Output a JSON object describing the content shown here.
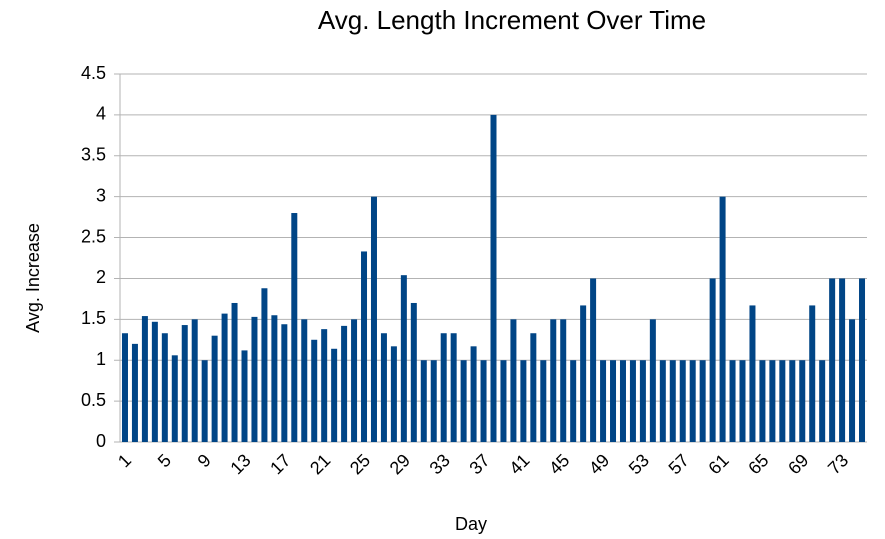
{
  "chart_data": {
    "type": "bar",
    "title": "Avg. Length Increment Over Time",
    "x_label": "Day",
    "y_label": "Avg. Increase",
    "categories": [
      "1",
      null,
      null,
      null,
      "5",
      null,
      null,
      null,
      "9",
      null,
      null,
      null,
      "13",
      null,
      null,
      null,
      "17",
      null,
      null,
      null,
      "21",
      null,
      null,
      null,
      "25",
      null,
      null,
      null,
      "29",
      null,
      null,
      null,
      "33",
      null,
      null,
      null,
      "37",
      null,
      null,
      null,
      "41",
      null,
      null,
      null,
      "45",
      null,
      null,
      null,
      "49",
      null,
      null,
      null,
      "53",
      null,
      null,
      null,
      "57",
      null,
      null,
      null,
      "61",
      null,
      null,
      null,
      "65",
      null,
      null,
      null,
      "69",
      null,
      null,
      null,
      "73",
      null,
      null
    ],
    "values": [
      1.33,
      1.2,
      1.54,
      1.47,
      1.33,
      1.06,
      1.43,
      1.5,
      1.0,
      1.3,
      1.57,
      1.7,
      1.12,
      1.53,
      1.88,
      1.55,
      1.44,
      2.8,
      1.5,
      1.25,
      1.38,
      1.14,
      1.42,
      1.5,
      2.33,
      3.0,
      1.33,
      1.17,
      2.04,
      1.7,
      1.0,
      1.0,
      1.33,
      1.33,
      1.0,
      1.17,
      1.0,
      4.0,
      1.0,
      1.5,
      1.0,
      1.33,
      1.0,
      1.5,
      1.5,
      1.0,
      1.67,
      2.0,
      1.0,
      1.0,
      1.0,
      1.0,
      1.0,
      1.5,
      1.0,
      1.0,
      1.0,
      1.0,
      1.0,
      2.0,
      3.0,
      1.0,
      1.0,
      1.67,
      1.0,
      1.0,
      1.0,
      1.0,
      1.0,
      1.67,
      1.0,
      2.0,
      2.0,
      1.5,
      2.0
    ],
    "color": "#004586",
    "ylim": [
      0,
      4.5
    ],
    "yticks": [
      0,
      0.5,
      1,
      1.5,
      2,
      2.5,
      3,
      3.5,
      4,
      4.5
    ],
    "grid": true
  }
}
